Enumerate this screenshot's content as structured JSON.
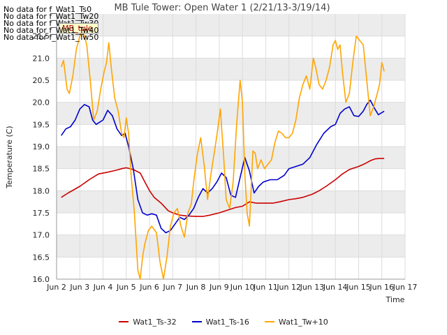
{
  "no_data_messages": [
    "No data for f_Wat1_Ts0",
    "No data for f_Wat1_Tw20",
    "No data for f_Wat1_Tw30",
    "No data for f_Wat1_Tw40",
    "No data for f_Wat1_Tw50"
  ],
  "flag_label": "MB_tule",
  "chart_data": {
    "type": "line",
    "title": "MB Tule Tower: Open Water 1 (2/21/13-3/19/14)",
    "xlabel": "Time",
    "ylabel": "Temperature (C)",
    "xlim": [
      2,
      17
    ],
    "ylim": [
      16.0,
      22.0
    ],
    "x_ticks": [
      2,
      3,
      4,
      5,
      6,
      7,
      8,
      9,
      10,
      11,
      12,
      13,
      14,
      15,
      16,
      17
    ],
    "x_tick_labels": [
      "Jun 2",
      "Jun 3",
      "Jun 4",
      "Jun 5",
      "Jun 6",
      "Jun 7",
      "Jun 8",
      "Jun 9",
      "Jun 10",
      "Jun 11",
      "Jun 12",
      "Jun 13",
      "Jun 14",
      "Jun 15",
      "Jun 16",
      "Jun 17"
    ],
    "y_ticks": [
      16.0,
      16.5,
      17.0,
      17.5,
      18.0,
      18.5,
      19.0,
      19.5,
      20.0,
      20.5,
      21.0,
      21.5
    ],
    "y_tick_labels": [
      "16.0",
      "16.5",
      "17.0",
      "17.5",
      "18.0",
      "18.5",
      "19.0",
      "19.5",
      "20.0",
      "20.5",
      "21.0",
      "21.5"
    ],
    "grid": true,
    "legend_position": "bottom",
    "series": [
      {
        "name": "Wat1_Ts-32",
        "color": "#cc0000",
        "x": [
          2.2,
          2.5,
          3.0,
          3.4,
          3.8,
          4.2,
          4.6,
          4.8,
          5.0,
          5.3,
          5.6,
          5.8,
          6.0,
          6.2,
          6.5,
          6.8,
          7.0,
          7.3,
          7.6,
          8.0,
          8.3,
          8.6,
          9.0,
          9.3,
          9.7,
          10.0,
          10.3,
          10.6,
          11.0,
          11.3,
          11.6,
          12.0,
          12.3,
          12.6,
          13.0,
          13.3,
          13.6,
          14.0,
          14.3,
          14.6,
          15.0,
          15.3,
          15.5,
          15.7,
          15.9,
          16.1
        ],
        "y": [
          17.85,
          17.95,
          18.1,
          18.25,
          18.38,
          18.42,
          18.47,
          18.5,
          18.52,
          18.48,
          18.4,
          18.2,
          18.0,
          17.85,
          17.72,
          17.55,
          17.5,
          17.45,
          17.43,
          17.42,
          17.42,
          17.45,
          17.5,
          17.55,
          17.62,
          17.65,
          17.75,
          17.72,
          17.72,
          17.72,
          17.75,
          17.8,
          17.82,
          17.85,
          17.92,
          18.0,
          18.1,
          18.25,
          18.38,
          18.48,
          18.55,
          18.62,
          18.68,
          18.72,
          18.73,
          18.73
        ]
      },
      {
        "name": "Wat1_Ts-16",
        "color": "#0000cc",
        "x": [
          2.2,
          2.4,
          2.6,
          2.8,
          3.0,
          3.2,
          3.4,
          3.55,
          3.7,
          3.85,
          4.0,
          4.2,
          4.4,
          4.6,
          4.8,
          4.95,
          5.1,
          5.3,
          5.5,
          5.7,
          5.9,
          6.1,
          6.3,
          6.5,
          6.7,
          6.9,
          7.1,
          7.3,
          7.5,
          7.7,
          7.9,
          8.1,
          8.3,
          8.5,
          8.7,
          8.9,
          9.1,
          9.3,
          9.5,
          9.7,
          9.9,
          10.1,
          10.3,
          10.5,
          10.7,
          10.9,
          11.2,
          11.5,
          11.8,
          12.0,
          12.3,
          12.6,
          12.9,
          13.2,
          13.5,
          13.8,
          14.0,
          14.2,
          14.4,
          14.6,
          14.8,
          15.0,
          15.2,
          15.35,
          15.5,
          15.7,
          15.85,
          16.1
        ],
        "y": [
          19.25,
          19.4,
          19.45,
          19.6,
          19.85,
          19.95,
          19.9,
          19.6,
          19.5,
          19.55,
          19.6,
          19.82,
          19.7,
          19.4,
          19.25,
          19.3,
          19.0,
          18.5,
          17.8,
          17.5,
          17.45,
          17.48,
          17.45,
          17.15,
          17.05,
          17.1,
          17.25,
          17.4,
          17.35,
          17.45,
          17.6,
          17.85,
          18.05,
          17.95,
          18.05,
          18.2,
          18.4,
          18.3,
          17.9,
          17.85,
          18.3,
          18.75,
          18.45,
          17.95,
          18.1,
          18.2,
          18.25,
          18.25,
          18.35,
          18.5,
          18.55,
          18.6,
          18.75,
          19.05,
          19.3,
          19.45,
          19.5,
          19.75,
          19.85,
          19.9,
          19.7,
          19.68,
          19.8,
          19.95,
          20.05,
          19.85,
          19.72,
          19.8
        ]
      },
      {
        "name": "Wat1_Tw+10",
        "color": "#ffa500",
        "x": [
          2.2,
          2.3,
          2.45,
          2.55,
          2.7,
          2.85,
          3.0,
          3.1,
          3.2,
          3.3,
          3.45,
          3.6,
          3.75,
          3.9,
          4.05,
          4.15,
          4.25,
          4.35,
          4.5,
          4.65,
          4.8,
          4.9,
          5.0,
          5.1,
          5.2,
          5.35,
          5.5,
          5.6,
          5.7,
          5.8,
          5.95,
          6.1,
          6.3,
          6.45,
          6.6,
          6.75,
          6.9,
          7.05,
          7.2,
          7.35,
          7.5,
          7.65,
          7.8,
          7.9,
          8.05,
          8.2,
          8.35,
          8.5,
          8.65,
          8.8,
          8.9,
          9.05,
          9.2,
          9.3,
          9.45,
          9.6,
          9.75,
          9.9,
          10.0,
          10.1,
          10.2,
          10.3,
          10.45,
          10.55,
          10.65,
          10.8,
          10.95,
          11.1,
          11.25,
          11.4,
          11.55,
          11.7,
          11.85,
          12.0,
          12.15,
          12.3,
          12.45,
          12.6,
          12.75,
          12.9,
          13.05,
          13.15,
          13.3,
          13.45,
          13.6,
          13.75,
          13.9,
          14.0,
          14.1,
          14.2,
          14.3,
          14.45,
          14.6,
          14.75,
          14.9,
          15.05,
          15.2,
          15.35,
          15.5,
          15.65,
          15.8,
          15.9,
          16.0,
          16.1
        ],
        "y": [
          20.8,
          20.95,
          20.3,
          20.2,
          20.6,
          21.2,
          21.5,
          21.6,
          21.5,
          21.3,
          20.5,
          19.6,
          19.8,
          20.3,
          20.7,
          20.9,
          21.35,
          20.8,
          20.1,
          19.8,
          19.3,
          19.2,
          19.65,
          19.3,
          18.4,
          17.5,
          16.2,
          16.0,
          16.5,
          16.8,
          17.1,
          17.2,
          17.05,
          16.4,
          16.0,
          16.5,
          17.2,
          17.5,
          17.6,
          17.2,
          16.95,
          17.5,
          17.7,
          18.2,
          18.8,
          19.2,
          18.6,
          17.8,
          18.4,
          18.9,
          19.25,
          19.85,
          18.7,
          17.8,
          17.6,
          18.2,
          19.5,
          20.5,
          20.0,
          18.4,
          17.5,
          17.2,
          18.9,
          18.85,
          18.5,
          18.7,
          18.5,
          18.6,
          18.7,
          19.1,
          19.35,
          19.3,
          19.2,
          19.2,
          19.3,
          19.6,
          20.1,
          20.4,
          20.6,
          20.3,
          21.0,
          20.8,
          20.4,
          20.3,
          20.5,
          20.8,
          21.3,
          21.4,
          21.2,
          21.3,
          20.7,
          20.0,
          20.2,
          20.9,
          21.5,
          21.4,
          21.3,
          20.5,
          19.7,
          19.9,
          20.2,
          20.4,
          20.9,
          20.7
        ]
      }
    ]
  }
}
